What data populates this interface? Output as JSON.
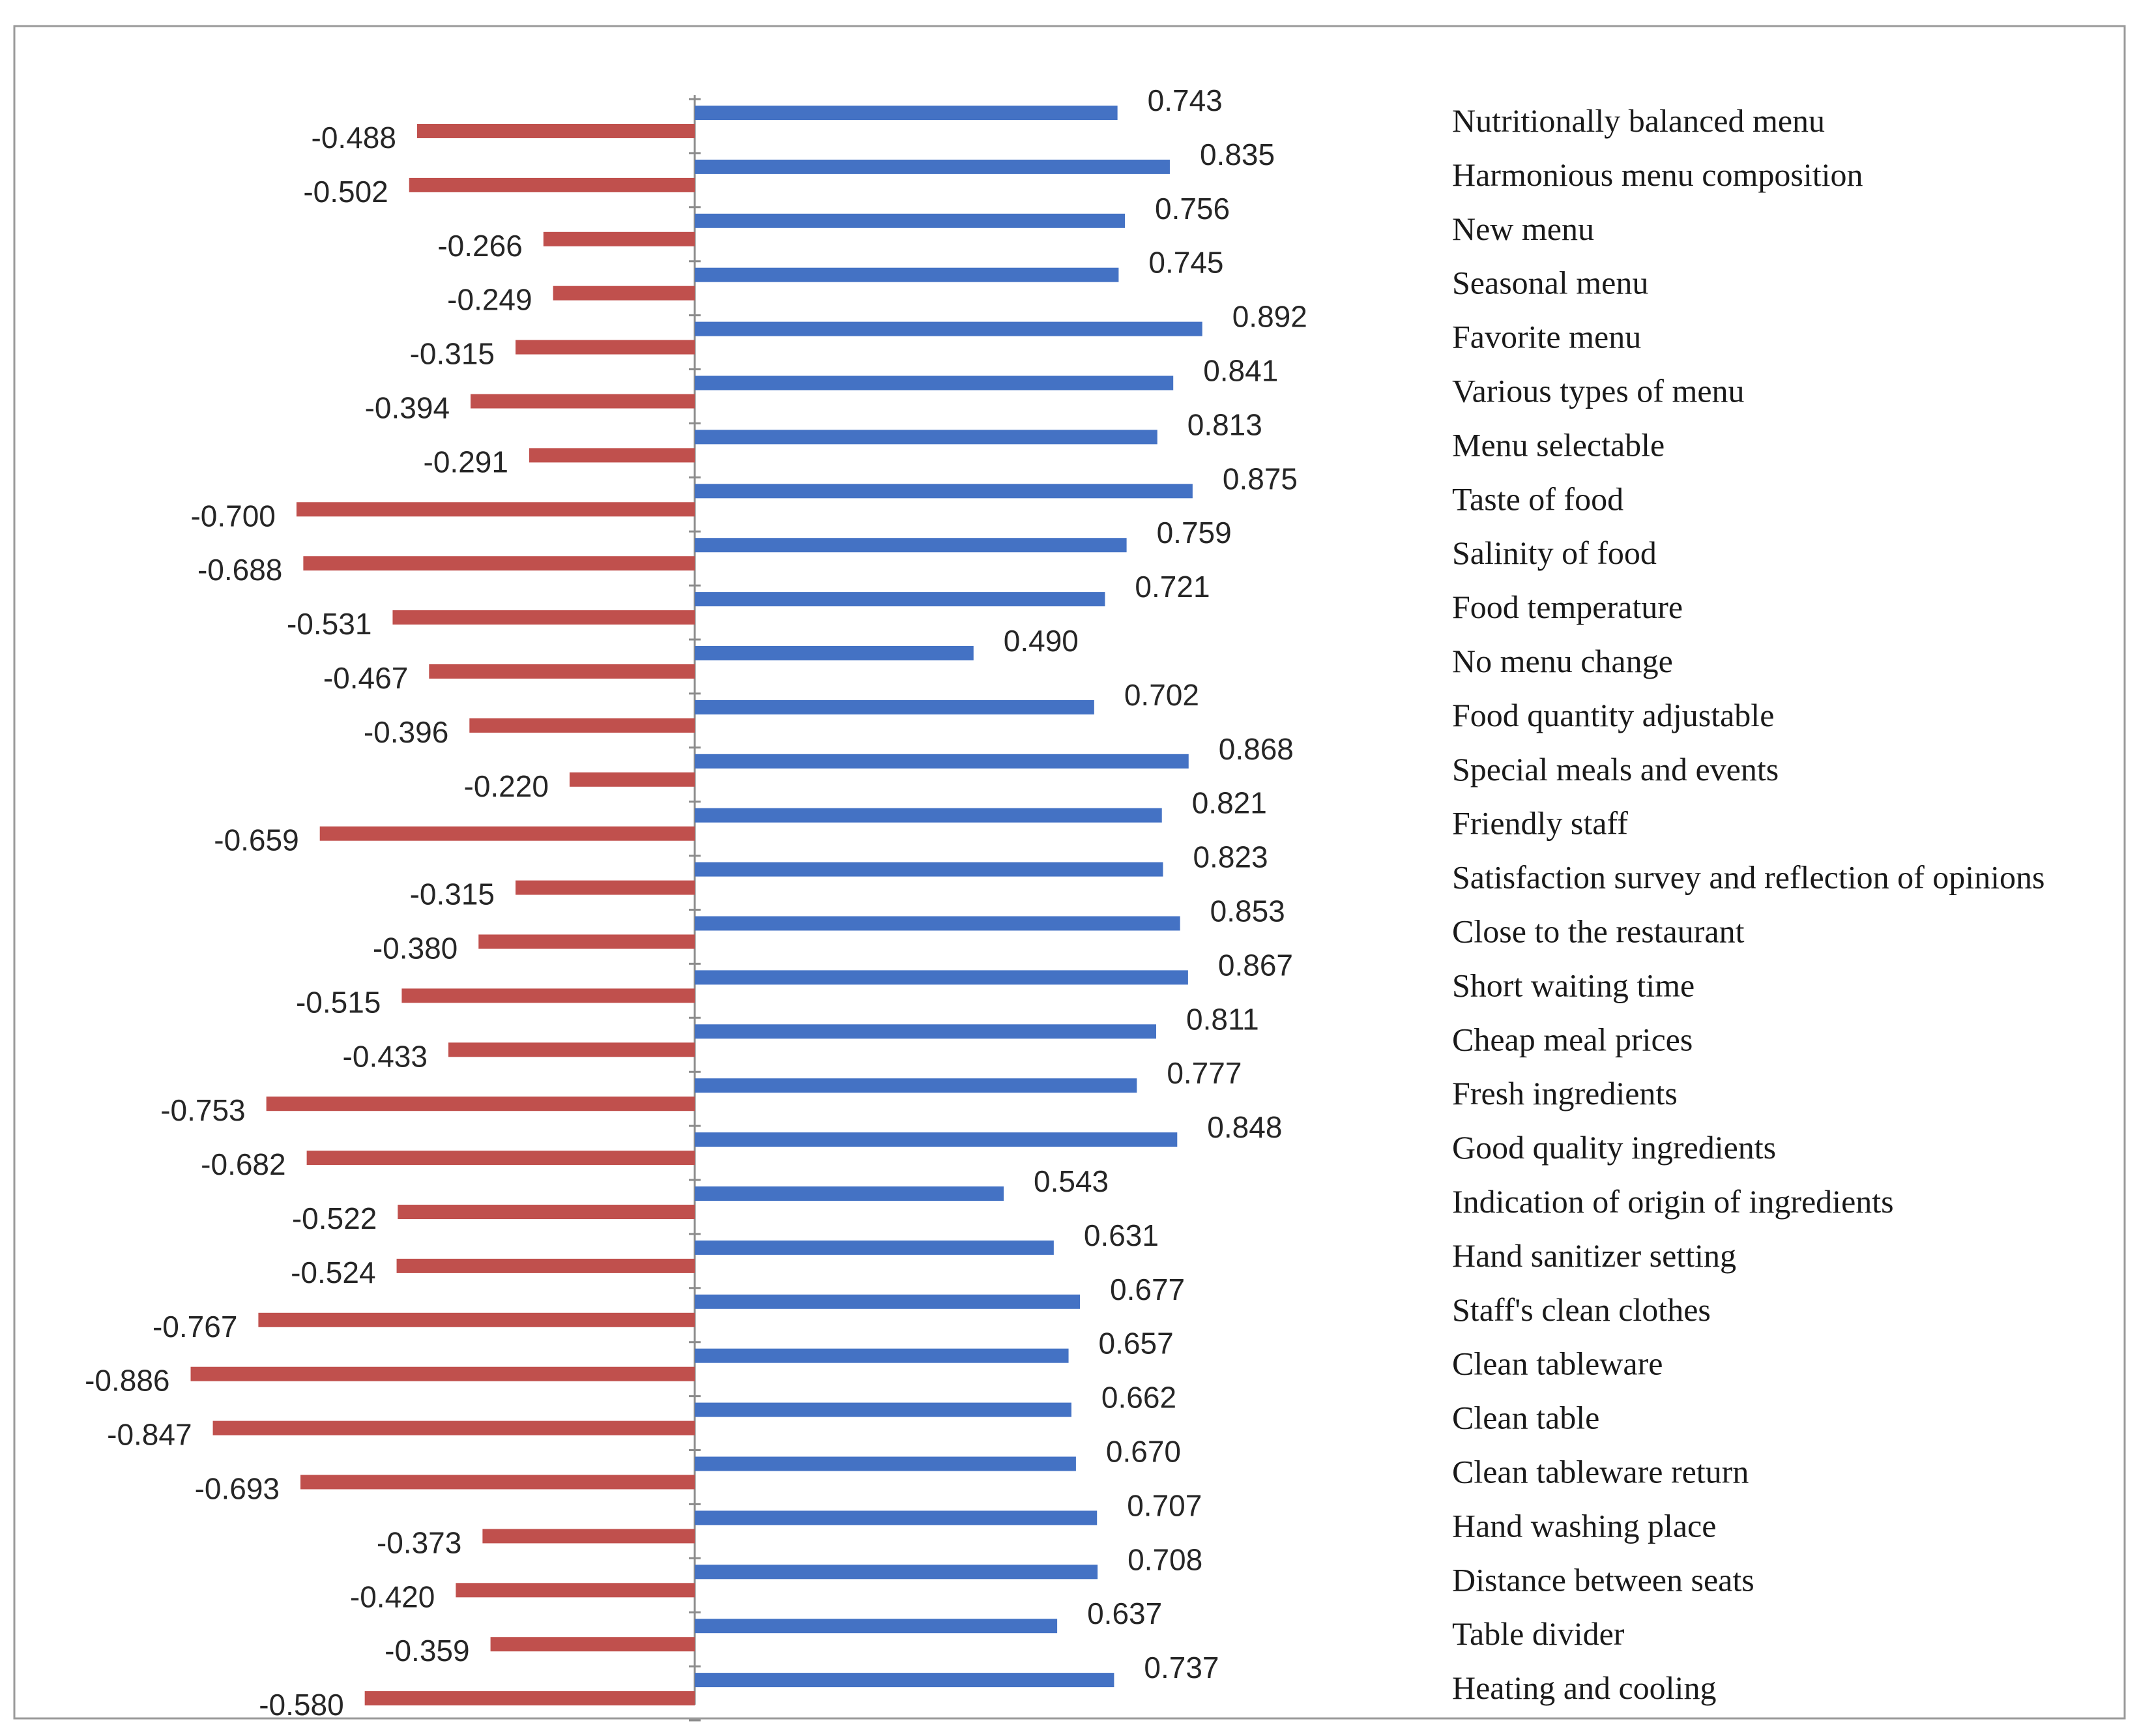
{
  "colors": {
    "positive_bar": "#4472C4",
    "negative_bar": "#C0504D",
    "axis": "#8C8C8C",
    "frame": "#9A9A9A",
    "text": "#262626"
  },
  "chart_data": {
    "type": "bar",
    "orientation": "horizontal",
    "title": "",
    "xlabel": "",
    "ylabel": "",
    "xlim": [
      -0.9,
      0.9
    ],
    "grid": false,
    "legend": "none",
    "series": [
      {
        "name": "positive",
        "values": [
          0.743,
          0.835,
          0.756,
          0.745,
          0.892,
          0.841,
          0.813,
          0.875,
          0.759,
          0.721,
          0.49,
          0.702,
          0.868,
          0.821,
          0.823,
          0.853,
          0.867,
          0.811,
          0.777,
          0.848,
          0.543,
          0.631,
          0.677,
          0.657,
          0.662,
          0.67,
          0.707,
          0.708,
          0.637,
          0.737
        ],
        "labels": [
          "0.743",
          "0.835",
          "0.756",
          "0.745",
          "0.892",
          "0.841",
          "0.813",
          "0.875",
          "0.759",
          "0.721",
          "0.490",
          "0.702",
          "0.868",
          "0.821",
          "0.823",
          "0.853",
          "0.867",
          "0.811",
          "0.777",
          "0.848",
          "0.543",
          "0.631",
          "0.677",
          "0.657",
          "0.662",
          "0.670",
          "0.707",
          "0.708",
          "0.637",
          "0.737"
        ]
      },
      {
        "name": "negative",
        "values": [
          -0.488,
          -0.502,
          -0.266,
          -0.249,
          -0.315,
          -0.394,
          -0.291,
          -0.7,
          -0.688,
          -0.531,
          -0.467,
          -0.396,
          -0.22,
          -0.659,
          -0.315,
          -0.38,
          -0.515,
          -0.433,
          -0.753,
          -0.682,
          -0.522,
          -0.524,
          -0.767,
          -0.886,
          -0.847,
          -0.693,
          -0.373,
          -0.42,
          -0.359,
          -0.58
        ],
        "labels": [
          "-0.488",
          "-0.502",
          "-0.266",
          "-0.249",
          "-0.315",
          "-0.394",
          "-0.291",
          "-0.700",
          "-0.688",
          "-0.531",
          "-0.467",
          "-0.396",
          "-0.220",
          "-0.659",
          "-0.315",
          "-0.380",
          "-0.515",
          "-0.433",
          "-0.753",
          "-0.682",
          "-0.522",
          "-0.524",
          "-0.767",
          "-0.886",
          "-0.847",
          "-0.693",
          "-0.373",
          "-0.420",
          "-0.359",
          "-0.580"
        ]
      }
    ],
    "categories": [
      "Nutritionally balanced menu",
      "Harmonious menu composition",
      "New menu",
      "Seasonal menu",
      "Favorite menu",
      "Various types of menu",
      "Menu selectable",
      "Taste of food",
      "Salinity of food",
      "Food temperature",
      "No menu change",
      "Food quantity adjustable",
      "Special meals and events",
      "Friendly staff",
      "Satisfaction survey and reflection of opinions",
      "Close to the restaurant",
      "Short waiting time",
      "Cheap meal prices",
      "Fresh ingredients",
      "Good quality ingredients",
      "Indication of origin of ingredients",
      "Hand sanitizer setting",
      "Staff's clean clothes",
      "Clean tableware",
      "Clean table",
      "Clean tableware return",
      "Hand washing place",
      "Distance between seats",
      "Table divider",
      "Heating and cooling"
    ]
  }
}
